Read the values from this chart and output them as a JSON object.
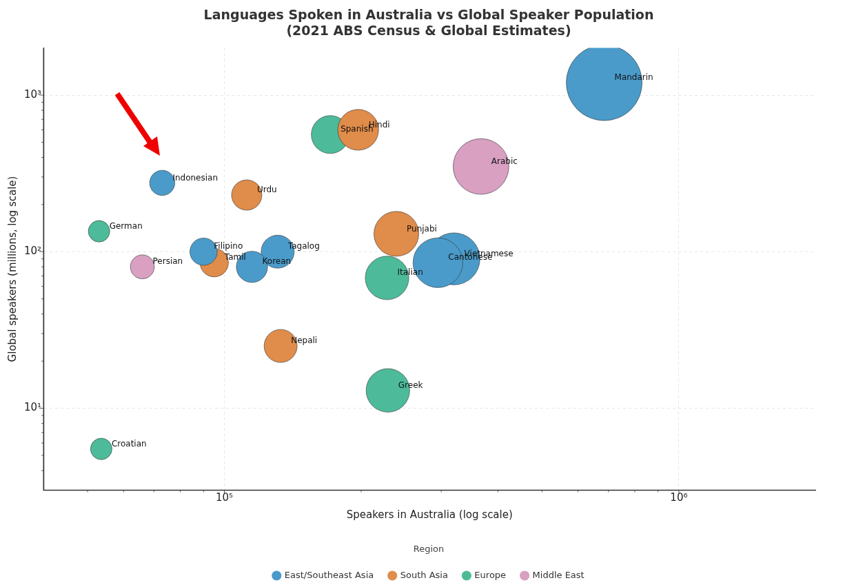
{
  "chart_data": {
    "type": "bubble",
    "title": "Languages Spoken in Australia vs Global Speaker Population",
    "subtitle": "(2021 ABS Census & Global Estimates)",
    "xlabel": "Speakers in Australia (log scale)",
    "ylabel": "Global speakers (millions, log scale)",
    "legend_title": "Region",
    "legend": "bottom",
    "log": "xy",
    "grid": true,
    "marker": "circle",
    "xlim": [
      40000,
      2000000
    ],
    "ylim": [
      3,
      2000
    ],
    "xticks": [
      {
        "value": 50000,
        "label": null
      },
      {
        "value": 60000,
        "label": null
      },
      {
        "value": 70000,
        "label": null
      },
      {
        "value": 80000,
        "label": null
      },
      {
        "value": 90000,
        "label": null
      },
      {
        "value": 100000,
        "label": "10⁵"
      },
      {
        "value": 200000,
        "label": null
      },
      {
        "value": 300000,
        "label": null
      },
      {
        "value": 400000,
        "label": null
      },
      {
        "value": 500000,
        "label": null
      },
      {
        "value": 600000,
        "label": null
      },
      {
        "value": 700000,
        "label": null
      },
      {
        "value": 800000,
        "label": null
      },
      {
        "value": 900000,
        "label": null
      },
      {
        "value": 1000000,
        "label": "10⁶"
      }
    ],
    "yticks": [
      {
        "value": 4,
        "label": null
      },
      {
        "value": 5,
        "label": null
      },
      {
        "value": 6,
        "label": null
      },
      {
        "value": 7,
        "label": null
      },
      {
        "value": 8,
        "label": null
      },
      {
        "value": 9,
        "label": null
      },
      {
        "value": 10,
        "label": "10¹"
      },
      {
        "value": 20,
        "label": null
      },
      {
        "value": 30,
        "label": null
      },
      {
        "value": 40,
        "label": null
      },
      {
        "value": 50,
        "label": null
      },
      {
        "value": 60,
        "label": null
      },
      {
        "value": 70,
        "label": null
      },
      {
        "value": 80,
        "label": null
      },
      {
        "value": 90,
        "label": null
      },
      {
        "value": 100,
        "label": "10²"
      },
      {
        "value": 200,
        "label": null
      },
      {
        "value": 300,
        "label": null
      },
      {
        "value": 400,
        "label": null
      },
      {
        "value": 500,
        "label": null
      },
      {
        "value": 600,
        "label": null
      },
      {
        "value": 700,
        "label": null
      },
      {
        "value": 800,
        "label": null
      },
      {
        "value": 900,
        "label": null
      },
      {
        "value": 1000,
        "label": "10³"
      }
    ],
    "series": [
      {
        "name": "East/Southeast Asia",
        "color": "#4a9bca",
        "x": [
          685000,
          320000,
          295000,
          131000,
          115000,
          90000,
          73000
        ],
        "values": [
          1200,
          90,
          85,
          100,
          80,
          100,
          275
        ],
        "sizes": [
          1,
          0.47,
          0.43,
          0.19,
          0.17,
          0.13,
          0.11
        ]
      },
      {
        "name": "South Asia",
        "color": "#e08c4a",
        "x": [
          239000,
          197000,
          133000,
          112000,
          95000
        ],
        "values": [
          130,
          600,
          25,
          230,
          85
        ],
        "sizes": [
          0.35,
          0.29,
          0.19,
          0.16,
          0.14
        ]
      },
      {
        "name": "Europe",
        "color": "#4dbb99",
        "x": [
          228000,
          229000,
          171000,
          53000,
          53600
        ],
        "values": [
          68,
          13,
          560,
          135,
          5.5
        ],
        "sizes": [
          0.33,
          0.33,
          0.25,
          0.08,
          0.08
        ]
      },
      {
        "name": "Middle East",
        "color": "#d9a0c2",
        "x": [
          367000,
          66000
        ],
        "values": [
          350,
          80
        ],
        "sizes": [
          0.54,
          0.1
        ]
      }
    ],
    "annotations": [
      {
        "text": "Mandarin",
        "x": 685000,
        "y": 1200
      },
      {
        "text": "Vietnamese",
        "x": 320000,
        "y": 90
      },
      {
        "text": "Cantonese",
        "x": 295000,
        "y": 85
      },
      {
        "text": "Tagalog",
        "x": 131000,
        "y": 100
      },
      {
        "text": "Korean",
        "x": 115000,
        "y": 80
      },
      {
        "text": "Filipino",
        "x": 90000,
        "y": 100
      },
      {
        "text": "Indonesian",
        "x": 73000,
        "y": 275
      },
      {
        "text": "Punjabi",
        "x": 239000,
        "y": 130
      },
      {
        "text": "Hindi",
        "x": 197000,
        "y": 600
      },
      {
        "text": "Nepali",
        "x": 133000,
        "y": 25
      },
      {
        "text": "Urdu",
        "x": 112000,
        "y": 230
      },
      {
        "text": "Tamil",
        "x": 95000,
        "y": 85
      },
      {
        "text": "Italian",
        "x": 228000,
        "y": 68
      },
      {
        "text": "Greek",
        "x": 229000,
        "y": 13
      },
      {
        "text": "Spanish",
        "x": 171000,
        "y": 560
      },
      {
        "text": "German",
        "x": 53000,
        "y": 135
      },
      {
        "text": "Croatian",
        "x": 53600,
        "y": 5.5
      },
      {
        "text": "Arabic",
        "x": 367000,
        "y": 350
      },
      {
        "text": "Persian",
        "x": 66000,
        "y": 80
      }
    ]
  }
}
